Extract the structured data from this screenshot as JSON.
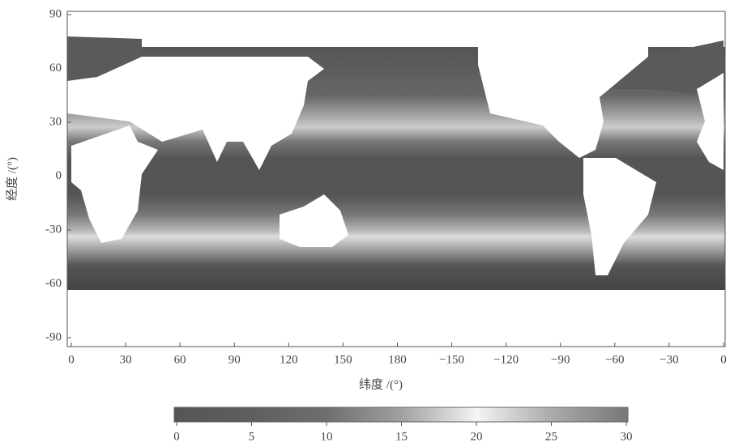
{
  "chart_data": {
    "type": "heatmap-map",
    "xlabel": "纬度 /(°)",
    "ylabel": "经度 /(°)",
    "xlim": [
      0,
      360
    ],
    "xticks": [
      0,
      30,
      60,
      90,
      120,
      150,
      180,
      {
        "value": 210,
        "label": "−150"
      },
      {
        "value": 240,
        "label": "−120"
      },
      {
        "value": 270,
        "label": "−90"
      },
      {
        "value": 300,
        "label": "−60"
      },
      {
        "value": 330,
        "label": "−30"
      },
      {
        "value": 360,
        "label": "0"
      }
    ],
    "ylim": [
      -90,
      90
    ],
    "yticks": [
      90,
      60,
      30,
      0,
      -30,
      -60,
      -90
    ],
    "colorbar": {
      "lim": [
        0,
        30
      ],
      "ticks": [
        0,
        5,
        10,
        15,
        20,
        25,
        30
      ],
      "colors": [
        "#555555",
        "#5e5e5e",
        "#6e6e6e",
        "#a0a0a0",
        "#f4f4f4",
        "#aaaaaa",
        "#777777"
      ]
    }
  }
}
